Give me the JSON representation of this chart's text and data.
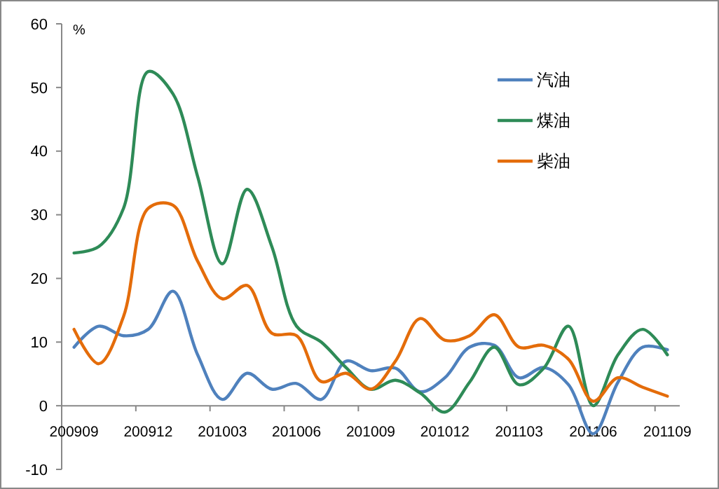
{
  "chart_data": {
    "type": "line",
    "ylabel": "%",
    "categories": [
      "200909",
      null,
      null,
      "200912",
      null,
      null,
      "201003",
      null,
      null,
      "201006",
      null,
      null,
      "201009",
      null,
      null,
      "201012",
      null,
      null,
      "201103",
      null,
      null,
      "201106",
      null,
      null,
      "201109"
    ],
    "series": [
      {
        "name": "汽油",
        "color": "#4f81bd",
        "values": [
          9.2,
          12.5,
          11,
          12,
          18,
          8,
          1,
          5.1,
          2.6,
          3.5,
          1,
          7,
          5.5,
          5.9,
          2.2,
          4.4,
          9.2,
          9.5,
          4.4,
          6,
          3.3,
          -4.4,
          3.7,
          9.2,
          8.8
        ]
      },
      {
        "name": "煤油",
        "color": "#2e8b57",
        "values": [
          24,
          25,
          31,
          52.5,
          49,
          36,
          22.3,
          34,
          25,
          12.5,
          10,
          6,
          2.6,
          4,
          2,
          -1,
          3.7,
          9.2,
          3.3,
          5.9,
          12.5,
          0,
          8,
          12,
          8
        ]
      },
      {
        "name": "柴油",
        "color": "#e46c0a",
        "values": [
          12,
          6.6,
          14,
          31,
          31.5,
          22.7,
          16.8,
          18.9,
          11.4,
          11,
          3.8,
          5.1,
          2.6,
          7,
          13.7,
          10.3,
          11,
          14.3,
          9.2,
          9.5,
          7.3,
          0.7,
          4.4,
          2.9,
          1.5
        ]
      }
    ],
    "ylim": [
      -10,
      60
    ],
    "yticks": [
      -10,
      0,
      10,
      20,
      30,
      40,
      50,
      60
    ],
    "grid": false,
    "legend": "top right",
    "marker": "none",
    "line_style": "solid"
  }
}
